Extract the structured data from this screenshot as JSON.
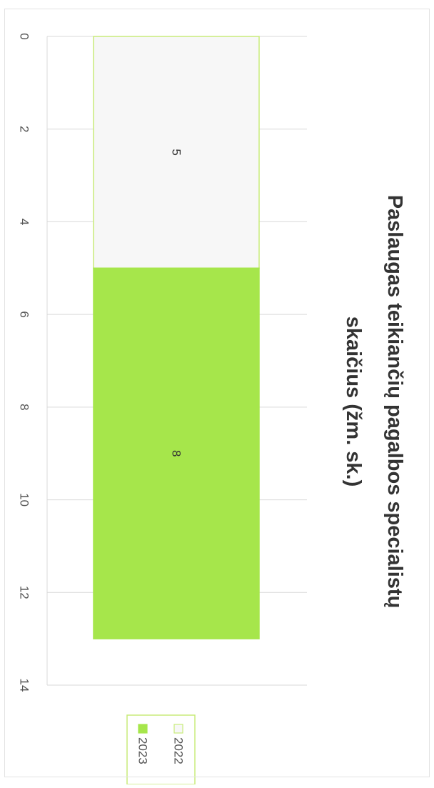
{
  "chart_data": {
    "type": "bar",
    "stacked": true,
    "orientation": "rotated-90-clockwise",
    "title_lines": [
      "Paslaugas teikiančių pagalbos specialistų",
      "skaičius (žm. sk.)"
    ],
    "categories": [
      ""
    ],
    "series": [
      {
        "name": "2022",
        "values": [
          5
        ],
        "color": "#f7f7f7",
        "edge": "#c9ec7a"
      },
      {
        "name": "2023",
        "values": [
          8
        ],
        "color": "#a6e64b",
        "edge": "#a6e64b"
      }
    ],
    "data_labels": [
      "5",
      "8"
    ],
    "value_axis": {
      "min": 0,
      "max": 14,
      "ticks": [
        0,
        2,
        4,
        6,
        8,
        10,
        12,
        14
      ],
      "tick_labels": [
        "0",
        "2",
        "4",
        "6",
        "8",
        "10",
        "12",
        "14"
      ]
    },
    "grid": true,
    "legend": {
      "placement": "bottom-right",
      "entries": [
        "2022",
        "2023"
      ]
    }
  }
}
